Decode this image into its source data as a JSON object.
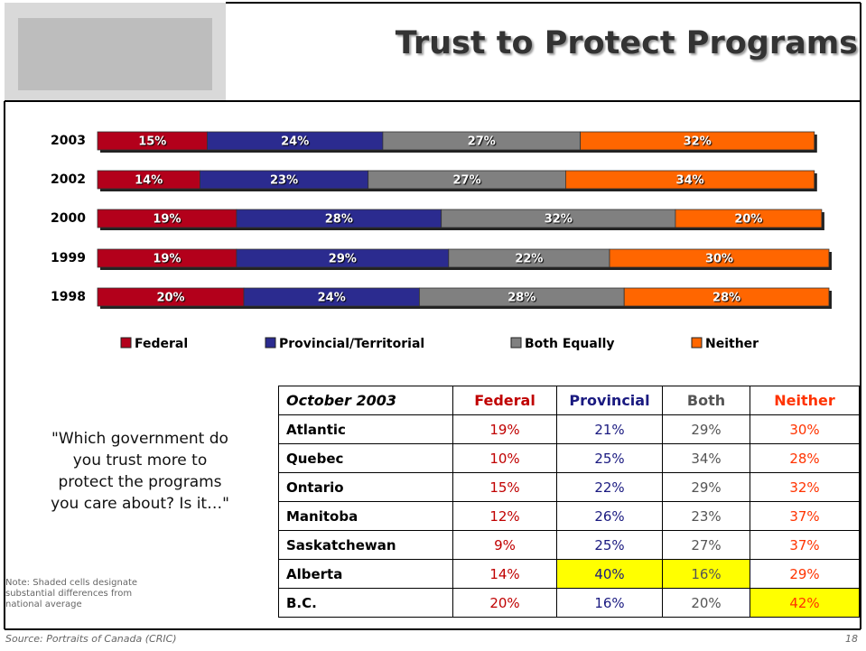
{
  "title": "Trust to Protect Programs",
  "chart_data": {
    "type": "bar",
    "orientation": "horizontal",
    "stacked": true,
    "categories": [
      "2003",
      "2002",
      "2000",
      "1999",
      "1998"
    ],
    "series": [
      {
        "name": "Federal",
        "color": "#b3001b",
        "values": [
          15,
          14,
          19,
          19,
          20
        ],
        "value_labels": [
          "15%",
          "14%",
          "19%",
          "19%",
          "20%"
        ]
      },
      {
        "name": "Provincial/Territorial",
        "color": "#2b2b8f",
        "values": [
          24,
          23,
          28,
          29,
          24
        ],
        "value_labels": [
          "24%",
          "23%",
          "28%",
          "29%",
          "24%"
        ]
      },
      {
        "name": "Both Equally",
        "color": "#808080",
        "values": [
          27,
          27,
          32,
          22,
          28
        ],
        "value_labels": [
          "27%",
          "27%",
          "32%",
          "22%",
          "28%"
        ]
      },
      {
        "name": "Neither",
        "color": "#ff6600",
        "values": [
          32,
          34,
          20,
          30,
          28
        ],
        "value_labels": [
          "32%",
          "34%",
          "20%",
          "30%",
          "28%"
        ]
      }
    ]
  },
  "question": "\"Which government do you trust more to protect the programs you care about? Is it…\"",
  "note": "Note: Shaded cells designate substantial differences from national average",
  "source": "Source: Portraits of Canada (CRIC)",
  "page_number": "18",
  "table": {
    "header": [
      "October 2003",
      "Federal",
      "Provincial",
      "Both",
      "Neither"
    ],
    "column_colors": [
      "#000000",
      "#c00000",
      "#1a1a80",
      "#555555",
      "#ff3300"
    ],
    "rows": [
      [
        "Atlantic",
        "19%",
        "21%",
        "29%",
        "30%"
      ],
      [
        "Quebec",
        "10%",
        "25%",
        "34%",
        "28%"
      ],
      [
        "Ontario",
        "15%",
        "22%",
        "29%",
        "32%"
      ],
      [
        "Manitoba",
        "12%",
        "26%",
        "23%",
        "37%"
      ],
      [
        "Saskatchewan",
        "9%",
        "25%",
        "27%",
        "37%"
      ],
      [
        "Alberta",
        "14%",
        "40%",
        "16%",
        "29%"
      ],
      [
        "B.C.",
        "20%",
        "16%",
        "20%",
        "42%"
      ]
    ],
    "highlight": [
      [
        5,
        2
      ],
      [
        5,
        3
      ],
      [
        6,
        4
      ]
    ],
    "highlight_color": "#ffff00"
  }
}
